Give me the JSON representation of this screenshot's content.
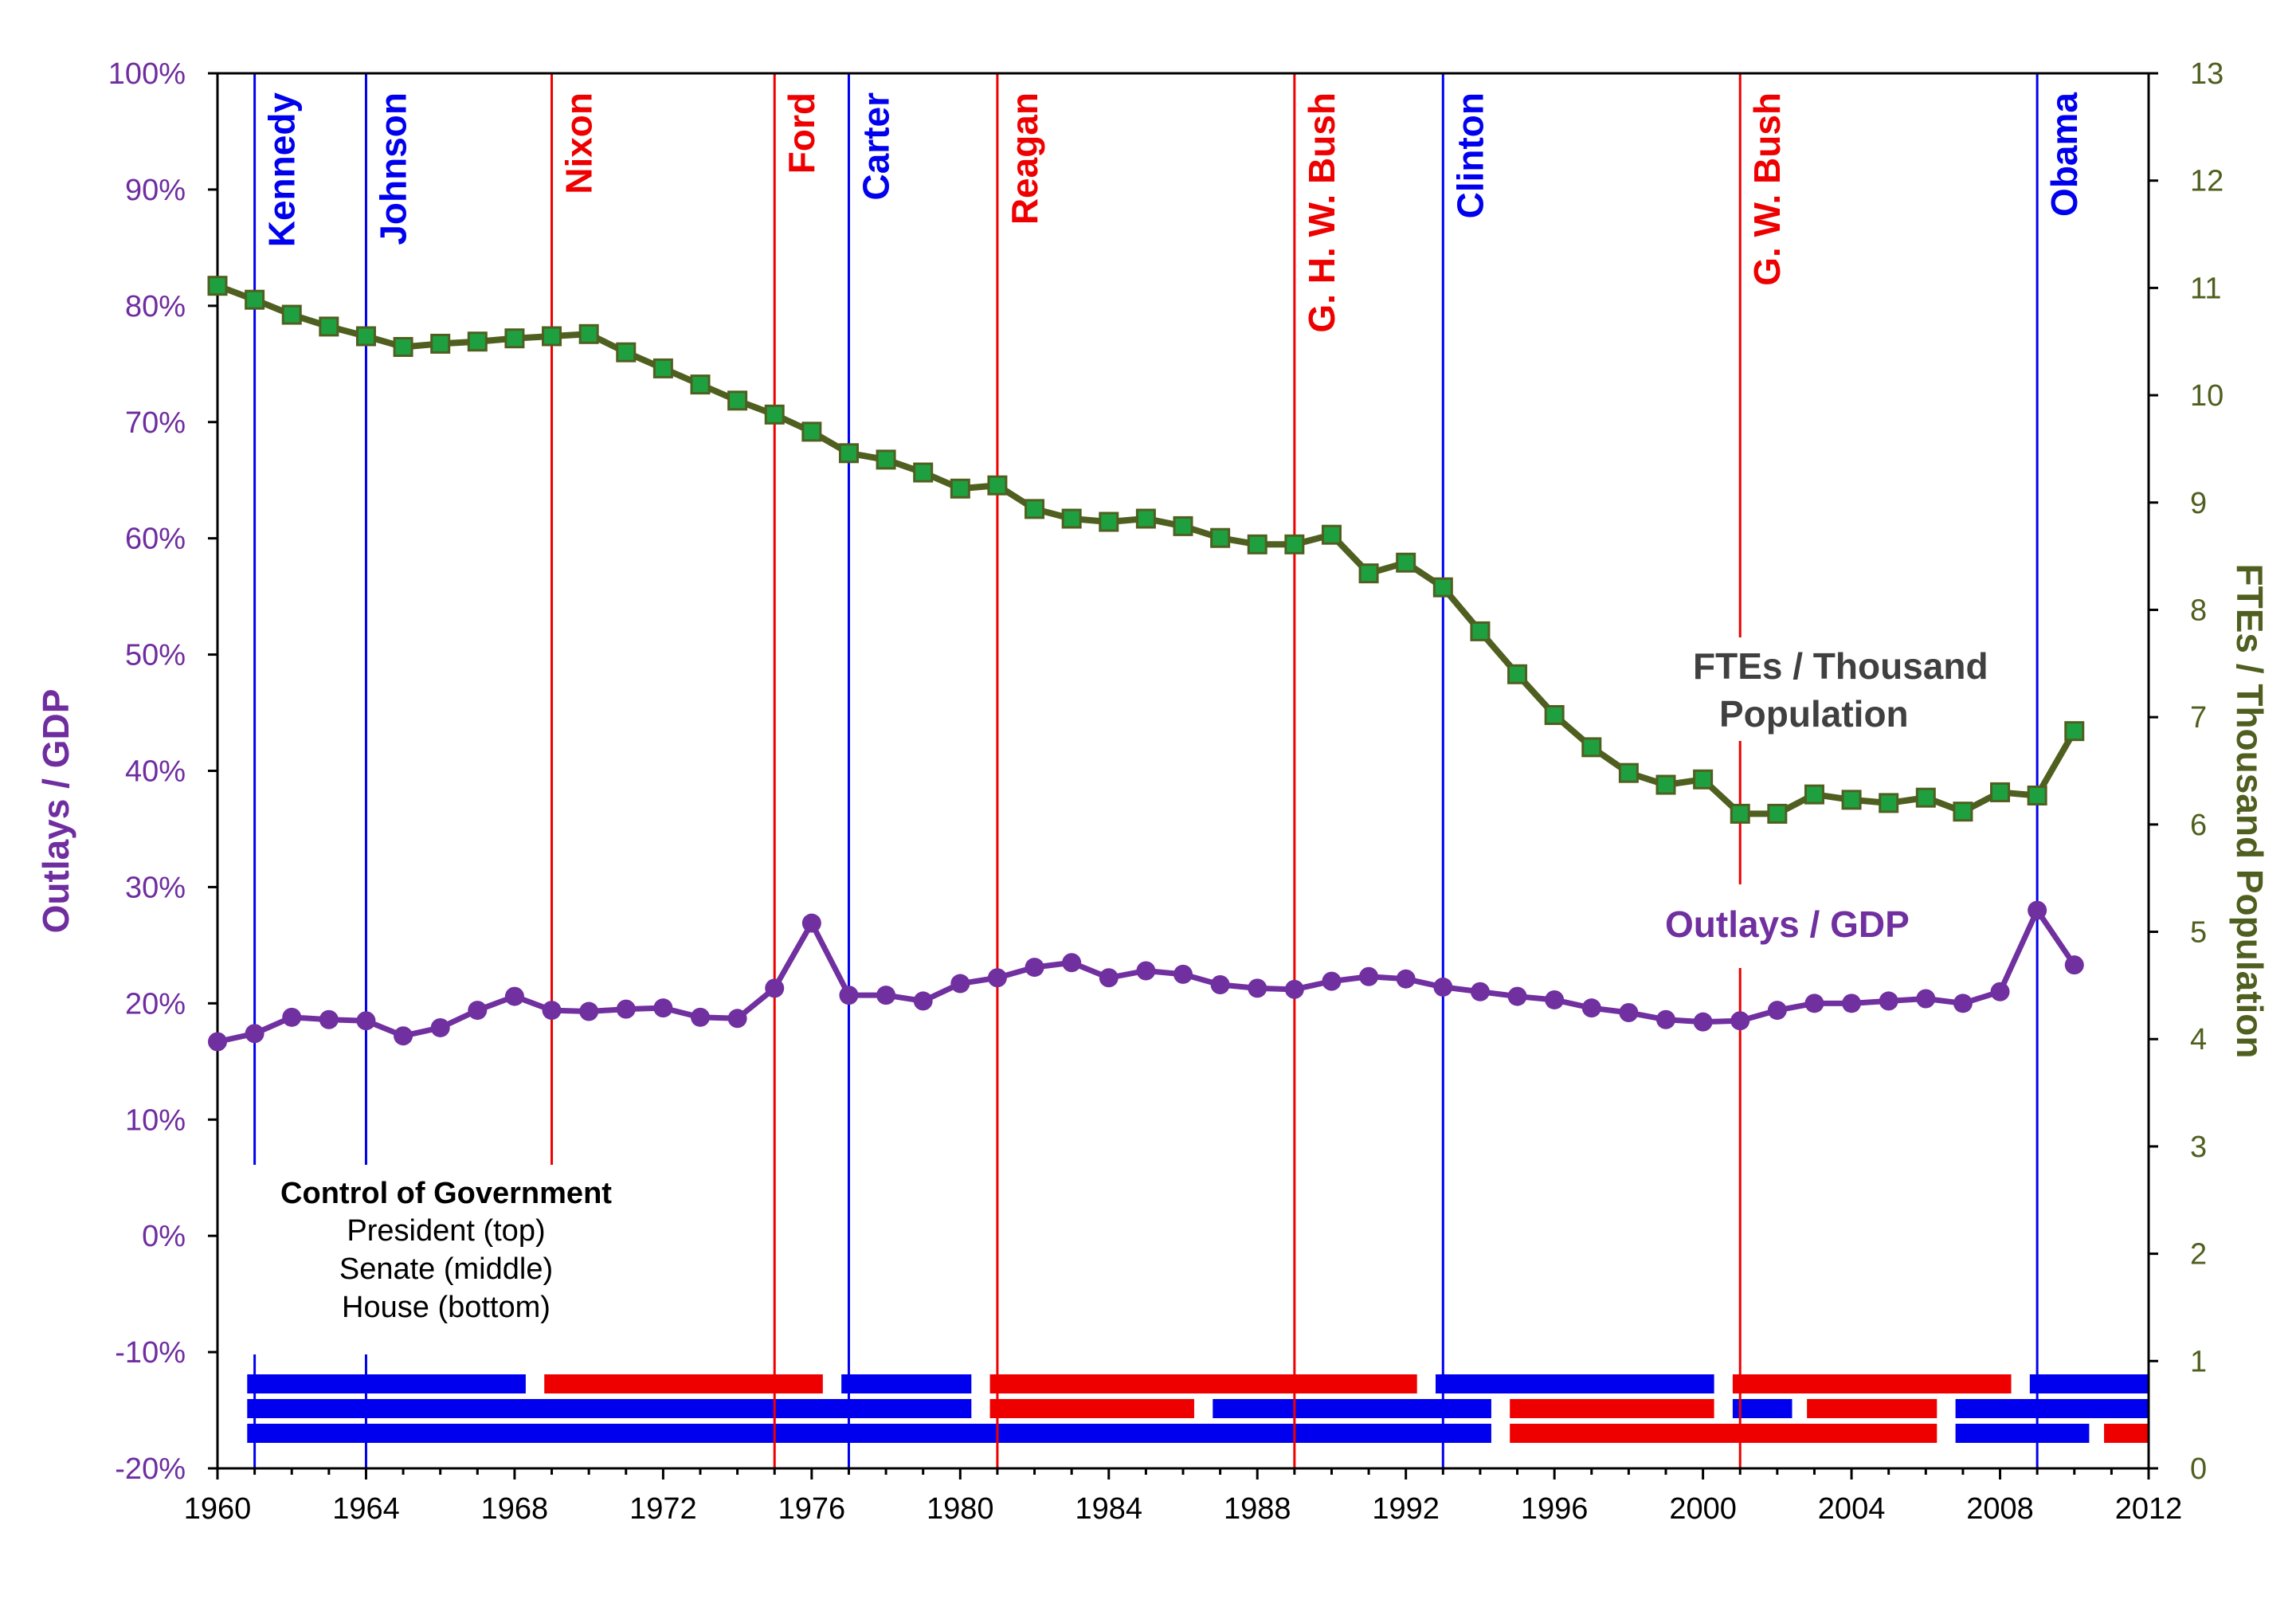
{
  "colors": {
    "left_axis": "#6F2DA0",
    "right_axis": "#4F5F1F",
    "democrat": "#0000EE",
    "republican": "#EE0000",
    "outlays_line": "#7030A0",
    "fte_line": "#4F5F1F",
    "fte_marker": "#1FA040",
    "frame": "#000000"
  },
  "chart_data": {
    "type": "line",
    "x_range": [
      1960,
      2012
    ],
    "x_ticks": [
      "1960",
      "1964",
      "1968",
      "1972",
      "1976",
      "1980",
      "1984",
      "1988",
      "1992",
      "1996",
      "2000",
      "2004",
      "2008",
      "2012"
    ],
    "left_axis": {
      "title": "Outlays / GDP",
      "range": [
        -20,
        100
      ],
      "ticks": [
        "100%",
        "90%",
        "80%",
        "70%",
        "60%",
        "50%",
        "40%",
        "30%",
        "20%",
        "10%",
        "0%",
        "-10%",
        "-20%"
      ]
    },
    "right_axis": {
      "title": "FTEs / Thousand Population",
      "range": [
        0,
        13
      ],
      "ticks": [
        "13",
        "12",
        "11",
        "10",
        "9",
        "8",
        "7",
        "6",
        "5",
        "4",
        "3",
        "2",
        "1",
        "0"
      ]
    },
    "series": [
      {
        "name": "Outlays / GDP",
        "label": "Outlays / GDP",
        "axis": "left",
        "x": [
          1960,
          1961,
          1962,
          1963,
          1964,
          1965,
          1966,
          1967,
          1968,
          1969,
          1970,
          1971,
          1972,
          1973,
          1974,
          1975,
          1976,
          1977,
          1978,
          1979,
          1980,
          1981,
          1982,
          1983,
          1984,
          1985,
          1986,
          1987,
          1988,
          1989,
          1990,
          1991,
          1992,
          1993,
          1994,
          1995,
          1996,
          1997,
          1998,
          1999,
          2000,
          2001,
          2002,
          2003,
          2004,
          2005,
          2006,
          2007,
          2008,
          2009,
          2010
        ],
        "values": [
          16.7,
          17.4,
          18.8,
          18.6,
          18.5,
          17.2,
          17.9,
          19.4,
          20.6,
          19.4,
          19.3,
          19.5,
          19.6,
          18.8,
          18.7,
          21.3,
          26.9,
          20.7,
          20.7,
          20.2,
          21.7,
          22.2,
          23.1,
          23.5,
          22.2,
          22.8,
          22.5,
          21.6,
          21.3,
          21.2,
          21.9,
          22.3,
          22.1,
          21.4,
          21.0,
          20.6,
          20.3,
          19.6,
          19.2,
          18.6,
          18.4,
          18.5,
          19.4,
          20.0,
          20.0,
          20.2,
          20.4,
          20.0,
          21.0,
          28.0,
          23.3
        ]
      },
      {
        "name": "FTEs / Thousand Population",
        "label_line1": "FTEs / Thousand",
        "label_line2": "Population",
        "axis": "right",
        "x": [
          1960,
          1961,
          1962,
          1963,
          1964,
          1965,
          1966,
          1967,
          1968,
          1969,
          1970,
          1971,
          1972,
          1973,
          1974,
          1975,
          1976,
          1977,
          1978,
          1979,
          1980,
          1981,
          1982,
          1983,
          1984,
          1985,
          1986,
          1987,
          1988,
          1989,
          1990,
          1991,
          1992,
          1993,
          1994,
          1995,
          1996,
          1997,
          1998,
          1999,
          2000,
          2001,
          2002,
          2003,
          2004,
          2005,
          2006,
          2007,
          2008,
          2009,
          2010
        ],
        "values": [
          11.02,
          10.89,
          10.75,
          10.64,
          10.55,
          10.45,
          10.48,
          10.5,
          10.53,
          10.55,
          10.57,
          10.4,
          10.25,
          10.1,
          9.95,
          9.82,
          9.66,
          9.46,
          9.4,
          9.28,
          9.13,
          9.16,
          8.94,
          8.85,
          8.82,
          8.85,
          8.78,
          8.67,
          8.61,
          8.61,
          8.7,
          8.34,
          8.44,
          8.21,
          7.8,
          7.4,
          7.02,
          6.72,
          6.48,
          6.37,
          6.42,
          6.1,
          6.1,
          6.28,
          6.23,
          6.2,
          6.25,
          6.12,
          6.3,
          6.27,
          6.87
        ]
      }
    ],
    "presidents": [
      {
        "name": "Kennedy",
        "year": 1961,
        "party": "D"
      },
      {
        "name": "Johnson",
        "year": 1964,
        "party": "D"
      },
      {
        "name": "Nixon",
        "year": 1969,
        "party": "R"
      },
      {
        "name": "Ford",
        "year": 1975,
        "party": "R"
      },
      {
        "name": "Carter",
        "year": 1977,
        "party": "D"
      },
      {
        "name": "Reagan",
        "year": 1981,
        "party": "R"
      },
      {
        "name": "G. H. W. Bush",
        "year": 1989,
        "party": "R"
      },
      {
        "name": "Clinton",
        "year": 1993,
        "party": "D"
      },
      {
        "name": "G. W. Bush",
        "year": 2001,
        "party": "R"
      },
      {
        "name": "Obama",
        "year": 2009,
        "party": "D"
      }
    ],
    "control_legend": {
      "title": "Control of Government",
      "line1": "President (top)",
      "line2": "Senate (middle)",
      "line3": "House (bottom)"
    },
    "control_bars": {
      "president": [
        {
          "start": 1960.8,
          "end": 1968.3,
          "party": "D"
        },
        {
          "start": 1968.8,
          "end": 1976.3,
          "party": "R"
        },
        {
          "start": 1976.8,
          "end": 1980.3,
          "party": "D"
        },
        {
          "start": 1980.8,
          "end": 1992.3,
          "party": "R"
        },
        {
          "start": 1992.8,
          "end": 2000.3,
          "party": "D"
        },
        {
          "start": 2000.8,
          "end": 2008.3,
          "party": "R"
        },
        {
          "start": 2008.8,
          "end": 2012.0,
          "party": "D"
        }
      ],
      "senate": [
        {
          "start": 1960.8,
          "end": 1980.3,
          "party": "D"
        },
        {
          "start": 1980.8,
          "end": 1986.3,
          "party": "R"
        },
        {
          "start": 1986.8,
          "end": 1994.3,
          "party": "D"
        },
        {
          "start": 1994.8,
          "end": 2000.3,
          "party": "R"
        },
        {
          "start": 2000.8,
          "end": 2002.4,
          "party": "D"
        },
        {
          "start": 2002.8,
          "end": 2006.3,
          "party": "R"
        },
        {
          "start": 2006.8,
          "end": 2012.0,
          "party": "D"
        }
      ],
      "house": [
        {
          "start": 1960.8,
          "end": 1994.3,
          "party": "D"
        },
        {
          "start": 1994.8,
          "end": 2006.3,
          "party": "R"
        },
        {
          "start": 2006.8,
          "end": 2010.4,
          "party": "D"
        },
        {
          "start": 2010.8,
          "end": 2012.0,
          "party": "R"
        }
      ]
    }
  }
}
